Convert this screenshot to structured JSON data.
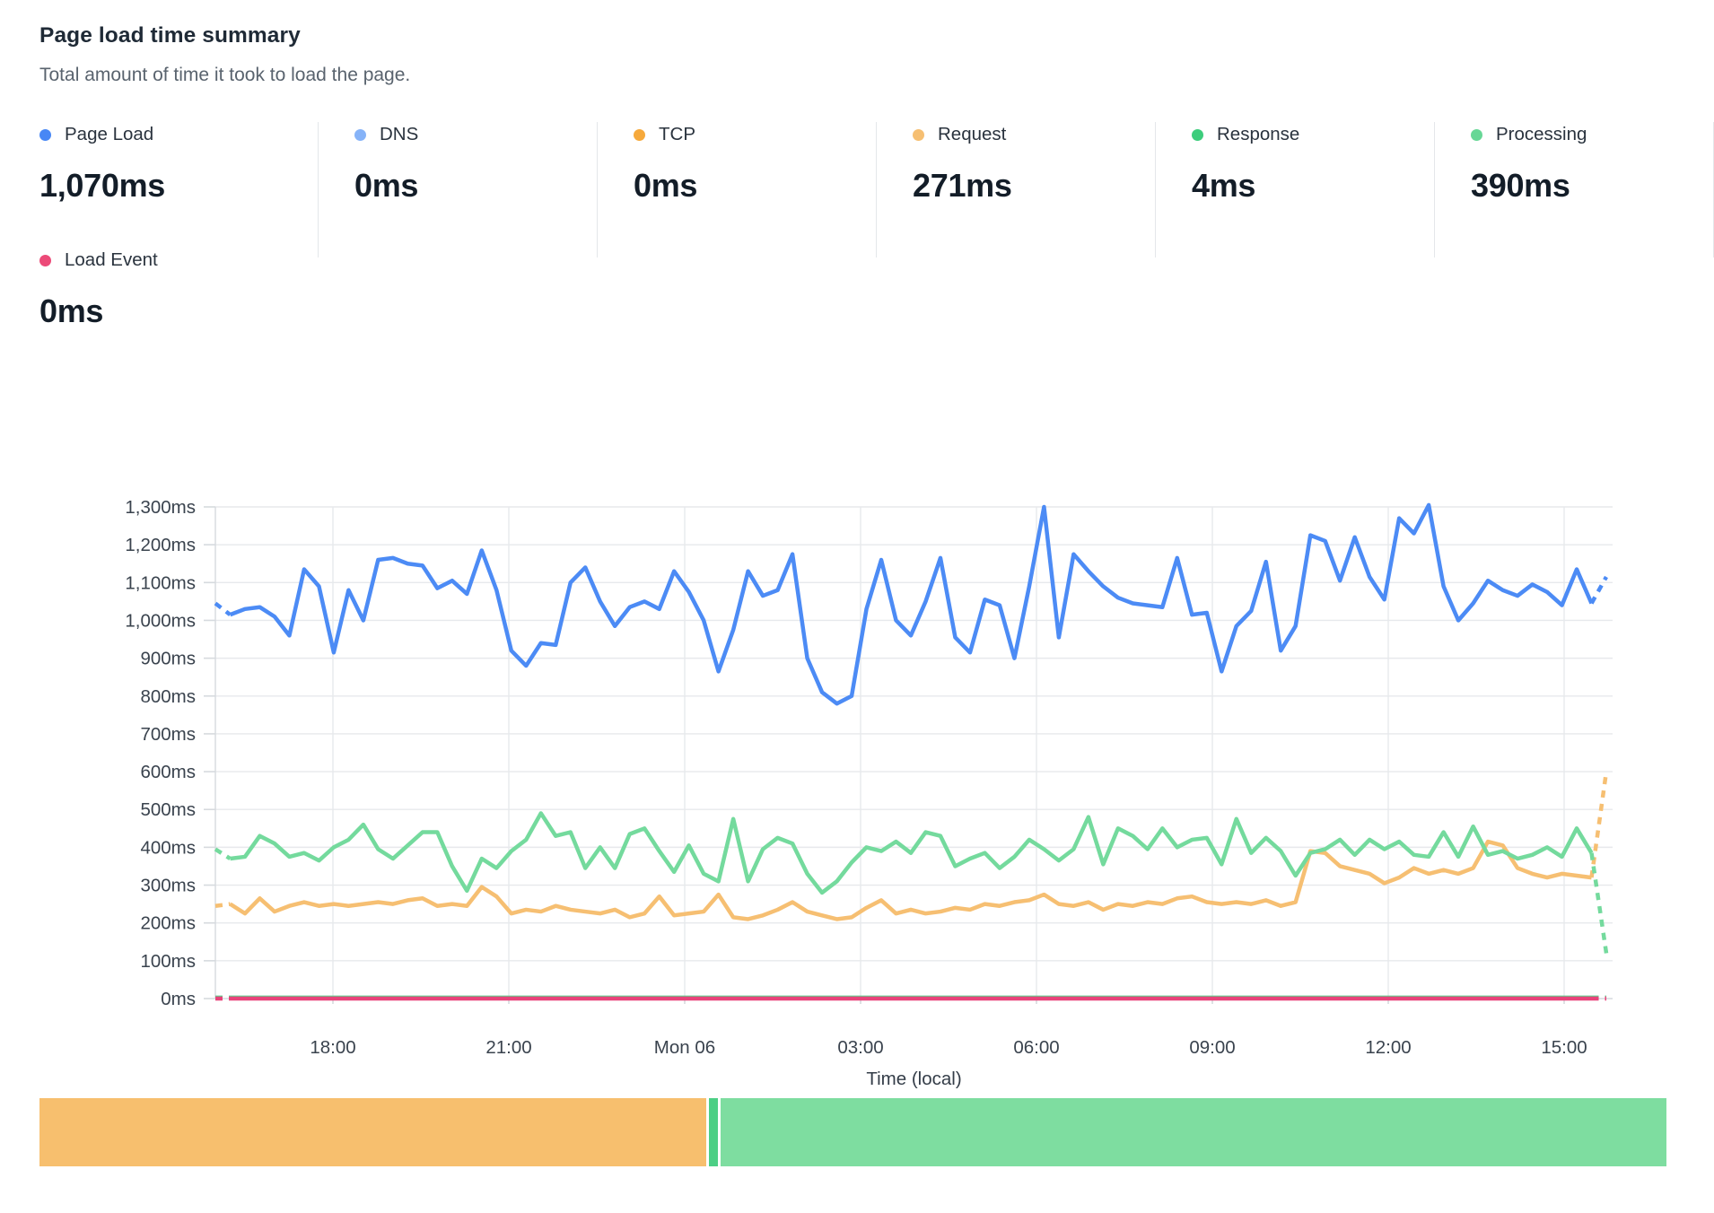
{
  "header": {
    "title": "Page load time summary",
    "subtitle": "Total amount of time it took to load the page."
  },
  "stats": [
    {
      "id": "page_load",
      "label": "Page Load",
      "value": "1,070ms",
      "color": "#4887f5"
    },
    {
      "id": "dns",
      "label": "DNS",
      "value": "0ms",
      "color": "#86b3f8"
    },
    {
      "id": "tcp",
      "label": "TCP",
      "value": "0ms",
      "color": "#f6a93b"
    },
    {
      "id": "request",
      "label": "Request",
      "value": "271ms",
      "color": "#f6bf72"
    },
    {
      "id": "response",
      "label": "Response",
      "value": "4ms",
      "color": "#3dcd7c"
    },
    {
      "id": "processing",
      "label": "Processing",
      "value": "390ms",
      "color": "#67d796"
    },
    {
      "id": "load_event",
      "label": "Load Event",
      "value": "0ms",
      "color": "#ec4a78"
    }
  ],
  "chart_data": {
    "type": "line",
    "title": "Page load time summary",
    "xlabel": "Time (local)",
    "ylabel": "",
    "ylim": [
      0,
      1300
    ],
    "y_tick_step_ms": 100,
    "y_tick_labels": [
      "0ms",
      "100ms",
      "200ms",
      "300ms",
      "400ms",
      "500ms",
      "600ms",
      "700ms",
      "800ms",
      "900ms",
      "1,000ms",
      "1,100ms",
      "1,200ms",
      "1,300ms"
    ],
    "x_ticks": [
      "18:00",
      "21:00",
      "Mon 06",
      "03:00",
      "06:00",
      "09:00",
      "12:00",
      "15:00"
    ],
    "grid": true,
    "legend_position": "top-stats",
    "note_dashes": "first and last segment of each series drawn dashed",
    "series": [
      {
        "name": "Page Load",
        "color": "#4c8bf5",
        "width": 4.5,
        "values": [
          1045,
          1015,
          1030,
          1035,
          1010,
          960,
          1135,
          1090,
          915,
          1080,
          1000,
          1160,
          1165,
          1150,
          1145,
          1085,
          1105,
          1070,
          1185,
          1080,
          920,
          880,
          940,
          935,
          1100,
          1140,
          1050,
          985,
          1035,
          1050,
          1030,
          1130,
          1075,
          1000,
          865,
          975,
          1130,
          1065,
          1080,
          1175,
          900,
          810,
          780,
          800,
          1030,
          1160,
          1000,
          960,
          1050,
          1165,
          955,
          915,
          1055,
          1040,
          900,
          1090,
          1300,
          955,
          1175,
          1130,
          1090,
          1060,
          1045,
          1040,
          1035,
          1165,
          1015,
          1020,
          865,
          985,
          1025,
          1155,
          920,
          985,
          1225,
          1210,
          1105,
          1220,
          1115,
          1055,
          1270,
          1230,
          1305,
          1090,
          1000,
          1045,
          1105,
          1080,
          1065,
          1095,
          1075,
          1040,
          1135,
          1045,
          1115
        ]
      },
      {
        "name": "DNS",
        "color": "#86b3f8",
        "width": 3,
        "flat": 0
      },
      {
        "name": "TCP",
        "color": "#f6a93b",
        "width": 3,
        "flat": 0
      },
      {
        "name": "Request",
        "color": "#f6bf72",
        "width": 4.5,
        "values": [
          245,
          250,
          225,
          265,
          230,
          245,
          255,
          245,
          250,
          245,
          250,
          255,
          250,
          260,
          265,
          245,
          250,
          245,
          295,
          270,
          225,
          235,
          230,
          245,
          235,
          230,
          225,
          235,
          215,
          225,
          270,
          220,
          225,
          230,
          275,
          215,
          210,
          220,
          235,
          255,
          230,
          220,
          210,
          215,
          240,
          260,
          225,
          235,
          225,
          230,
          240,
          235,
          250,
          245,
          255,
          260,
          275,
          250,
          245,
          255,
          235,
          250,
          245,
          255,
          250,
          265,
          270,
          255,
          250,
          255,
          250,
          260,
          245,
          255,
          390,
          385,
          350,
          340,
          330,
          305,
          320,
          345,
          330,
          340,
          330,
          345,
          415,
          405,
          345,
          330,
          320,
          330,
          325,
          320,
          600
        ]
      },
      {
        "name": "Response",
        "color": "#5fcd8c",
        "width": 2.5,
        "flat": 5
      },
      {
        "name": "Processing",
        "color": "#74da9d",
        "width": 4.5,
        "values": [
          395,
          370,
          375,
          430,
          410,
          375,
          385,
          365,
          400,
          420,
          460,
          395,
          370,
          405,
          440,
          440,
          350,
          285,
          370,
          345,
          390,
          420,
          490,
          430,
          440,
          345,
          400,
          345,
          435,
          450,
          390,
          335,
          405,
          330,
          310,
          475,
          310,
          395,
          425,
          410,
          330,
          280,
          310,
          360,
          400,
          390,
          415,
          385,
          440,
          430,
          350,
          370,
          385,
          345,
          375,
          420,
          395,
          365,
          395,
          480,
          355,
          450,
          430,
          395,
          450,
          400,
          420,
          425,
          355,
          475,
          385,
          425,
          390,
          325,
          385,
          395,
          420,
          380,
          420,
          395,
          415,
          380,
          375,
          440,
          375,
          455,
          380,
          390,
          370,
          380,
          400,
          375,
          450,
          385,
          120
        ]
      },
      {
        "name": "Load Event",
        "color": "#e8437a",
        "width": 4.5,
        "flat": 0
      }
    ]
  },
  "breakdown_bar": {
    "segments": [
      {
        "name": "request",
        "color": "#f7bf6e",
        "fraction": 0.4098
      },
      {
        "name": "response",
        "color": "#4ccf85",
        "fraction": 0.0055
      },
      {
        "name": "processing",
        "color": "#7edda0",
        "fraction": 0.5815
      }
    ]
  },
  "colors": {
    "grid": "#e7e9ec",
    "axis": "#d6dade",
    "tick_text": "#3a434e",
    "divider": "#e4e7ea"
  }
}
